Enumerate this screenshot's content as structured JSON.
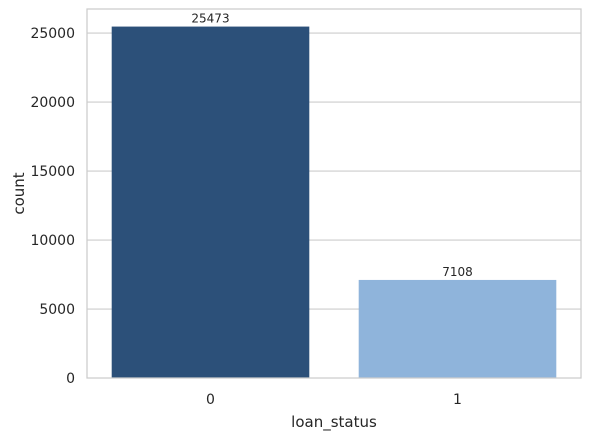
{
  "chart_data": {
    "type": "bar",
    "title": "",
    "xlabel": "loan_status",
    "ylabel": "count",
    "categories": [
      "0",
      "1"
    ],
    "values": [
      25473,
      7108
    ],
    "data_labels": [
      "25473",
      "7108"
    ],
    "bar_colors": [
      "#2c5079",
      "#8fb4db"
    ],
    "ylim": [
      0,
      26747
    ],
    "yticks": [
      0,
      5000,
      10000,
      15000,
      20000,
      25000
    ],
    "ytick_labels": [
      "0",
      "5000",
      "10000",
      "15000",
      "20000",
      "25000"
    ],
    "grid": "y",
    "legend": "none",
    "spine_color": "#cccccc",
    "grid_color": "#cccccc"
  }
}
